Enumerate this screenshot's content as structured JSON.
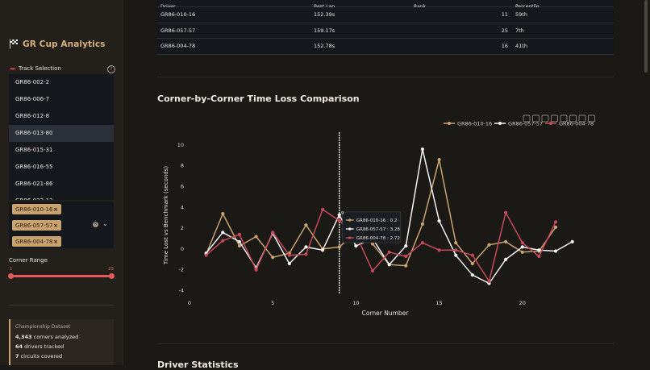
{
  "sidebar": {
    "title": "GR Cup Analytics",
    "track_selection_label": "Track Selection",
    "track_items": [
      {
        "label": "GR86-002-2"
      },
      {
        "label": "GR86-006-7"
      },
      {
        "label": "GR86-012-8"
      },
      {
        "label": "GR86-013-80",
        "selected": true
      },
      {
        "label": "GR86-015-31"
      },
      {
        "label": "GR86-016-55"
      },
      {
        "label": "GR86-021-86"
      },
      {
        "label": "GR86-022-13"
      }
    ],
    "selected_drivers": [
      "GR86-010-16",
      "GR86-057-57",
      "GR86-004-78"
    ],
    "corner_range": {
      "label": "Corner Range",
      "min": "1",
      "max": "23"
    },
    "dataset": {
      "title": "Championship Dataset",
      "line1_value": "4,343",
      "line1_text": "corners analyzed",
      "line2_value": "64",
      "line2_text": "drivers tracked",
      "line3_value": "7",
      "line3_text": "circuits covered"
    }
  },
  "table": {
    "headers": {
      "driver": "Driver",
      "best_lap": "Best Lap",
      "rank": "Rank",
      "percentile": "Percentile"
    },
    "rows": [
      {
        "driver": "GR86-010-16",
        "best_lap": "152.39s",
        "rank": "11",
        "percentile": "59th"
      },
      {
        "driver": "GR86-057-57",
        "best_lap": "159.17s",
        "rank": "25",
        "percentile": "7th"
      },
      {
        "driver": "GR86-004-78",
        "best_lap": "152.78s",
        "rank": "16",
        "percentile": "41th"
      }
    ]
  },
  "section_title": "Corner-by-Corner Time Loss Comparison",
  "next_section_title": "Driver Statistics",
  "chart_data": {
    "type": "line",
    "xlabel": "Corner Number",
    "ylabel": "Time Lost vs Benchmark (seconds)",
    "xlim": [
      0,
      23.5
    ],
    "ylim": [
      -4.5,
      11
    ],
    "xticks": [
      0,
      5,
      10,
      15,
      20
    ],
    "yticks": [
      -4,
      -2,
      0,
      2,
      4,
      6,
      8,
      10
    ],
    "legend_position": "top-right",
    "hover": {
      "x": 9,
      "x_label": "9",
      "entries": [
        "GR86-010-16 : 0.2",
        "GR86-057-57 : 3.28",
        "GR86-004-78 : 2.72"
      ]
    },
    "series": [
      {
        "name": "GR86-010-16",
        "color": "#c9a26d",
        "x": [
          1,
          2,
          3,
          4,
          5,
          6,
          7,
          8,
          9,
          10,
          11,
          12,
          13,
          14,
          15,
          16,
          17,
          18,
          19,
          20,
          21,
          22
        ],
        "y": [
          -0.5,
          3.4,
          0.3,
          1.2,
          -0.8,
          -0.4,
          2.3,
          0.0,
          0.2,
          1.6,
          0.5,
          -1.5,
          -1.6,
          2.4,
          8.6,
          0.6,
          -1.4,
          0.4,
          0.7,
          -0.3,
          -0.2,
          2.1
        ]
      },
      {
        "name": "GR86-057-57",
        "color": "#f2f2f2",
        "x": [
          1,
          2,
          3,
          4,
          5,
          6,
          7,
          8,
          9,
          10,
          11,
          12,
          13,
          14,
          15,
          16,
          17,
          18,
          19,
          20,
          21,
          22,
          23
        ],
        "y": [
          -0.4,
          1.6,
          0.7,
          -1.8,
          1.5,
          -1.4,
          0.2,
          -0.1,
          3.28,
          0.3,
          1.0,
          -1.5,
          0.3,
          9.6,
          2.7,
          -0.6,
          -2.5,
          -3.3,
          -1.0,
          0.2,
          -0.1,
          -0.2,
          0.7
        ]
      },
      {
        "name": "GR86-004-78",
        "color": "#c8485a",
        "x": [
          1,
          2,
          3,
          4,
          5,
          6,
          7,
          8,
          9,
          10,
          11,
          12,
          13,
          14,
          15,
          16,
          17,
          18,
          19,
          20,
          21,
          22
        ],
        "y": [
          -0.6,
          0.8,
          1.4,
          -2.0,
          1.6,
          -0.6,
          -0.5,
          3.8,
          2.72,
          1.4,
          -2.1,
          -0.3,
          -0.7,
          0.6,
          -0.1,
          -0.1,
          -0.6,
          -3.1,
          3.5,
          0.6,
          -0.7,
          2.6
        ]
      }
    ]
  }
}
